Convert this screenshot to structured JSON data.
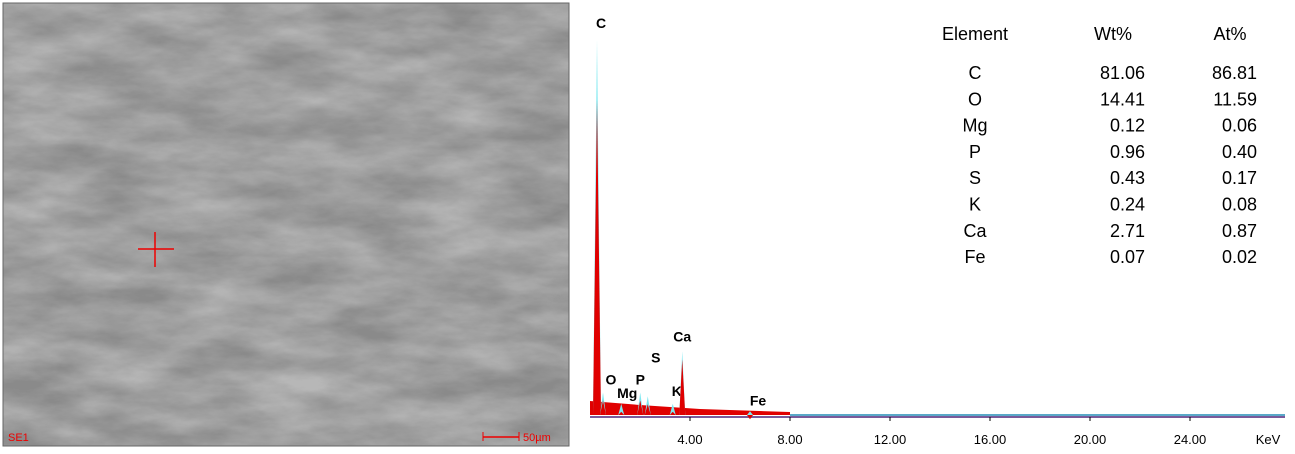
{
  "image": {
    "label": "SE1",
    "scale": "50µm"
  },
  "table": {
    "header": [
      "Element",
      "Wt%",
      "At%"
    ],
    "rows": [
      [
        "C",
        "81.06",
        "86.81"
      ],
      [
        "O",
        "14.41",
        "11.59"
      ],
      [
        "Mg",
        "0.12",
        "0.06"
      ],
      [
        "P",
        "0.96",
        "0.40"
      ],
      [
        "S",
        "0.43",
        "0.17"
      ],
      [
        "K",
        "0.24",
        "0.08"
      ],
      [
        "Ca",
        "2.71",
        "0.87"
      ],
      [
        "Fe",
        "0.07",
        "0.02"
      ]
    ]
  },
  "chart_data": {
    "type": "spectrum",
    "xlabel": "KeV",
    "labels": [
      "C",
      "O",
      "Mg",
      "P",
      "S",
      "K",
      "Ca",
      "Fe"
    ],
    "x": [
      0.28,
      0.52,
      1.25,
      2.01,
      2.31,
      3.31,
      3.69,
      6.4
    ],
    "values": [
      100,
      6,
      3,
      6,
      5,
      3,
      17,
      1
    ],
    "color": "#e00000",
    "xlim": [
      0,
      27.8
    ],
    "ylim": [
      0,
      100
    ],
    "xticks": [
      {
        "value": 4,
        "label": "4.00"
      },
      {
        "value": 8,
        "label": "8.00"
      },
      {
        "value": 12,
        "label": "12.00"
      },
      {
        "value": 16,
        "label": "16.00"
      },
      {
        "value": 20,
        "label": "20.00"
      },
      {
        "value": 24,
        "label": "24.00"
      }
    ]
  }
}
